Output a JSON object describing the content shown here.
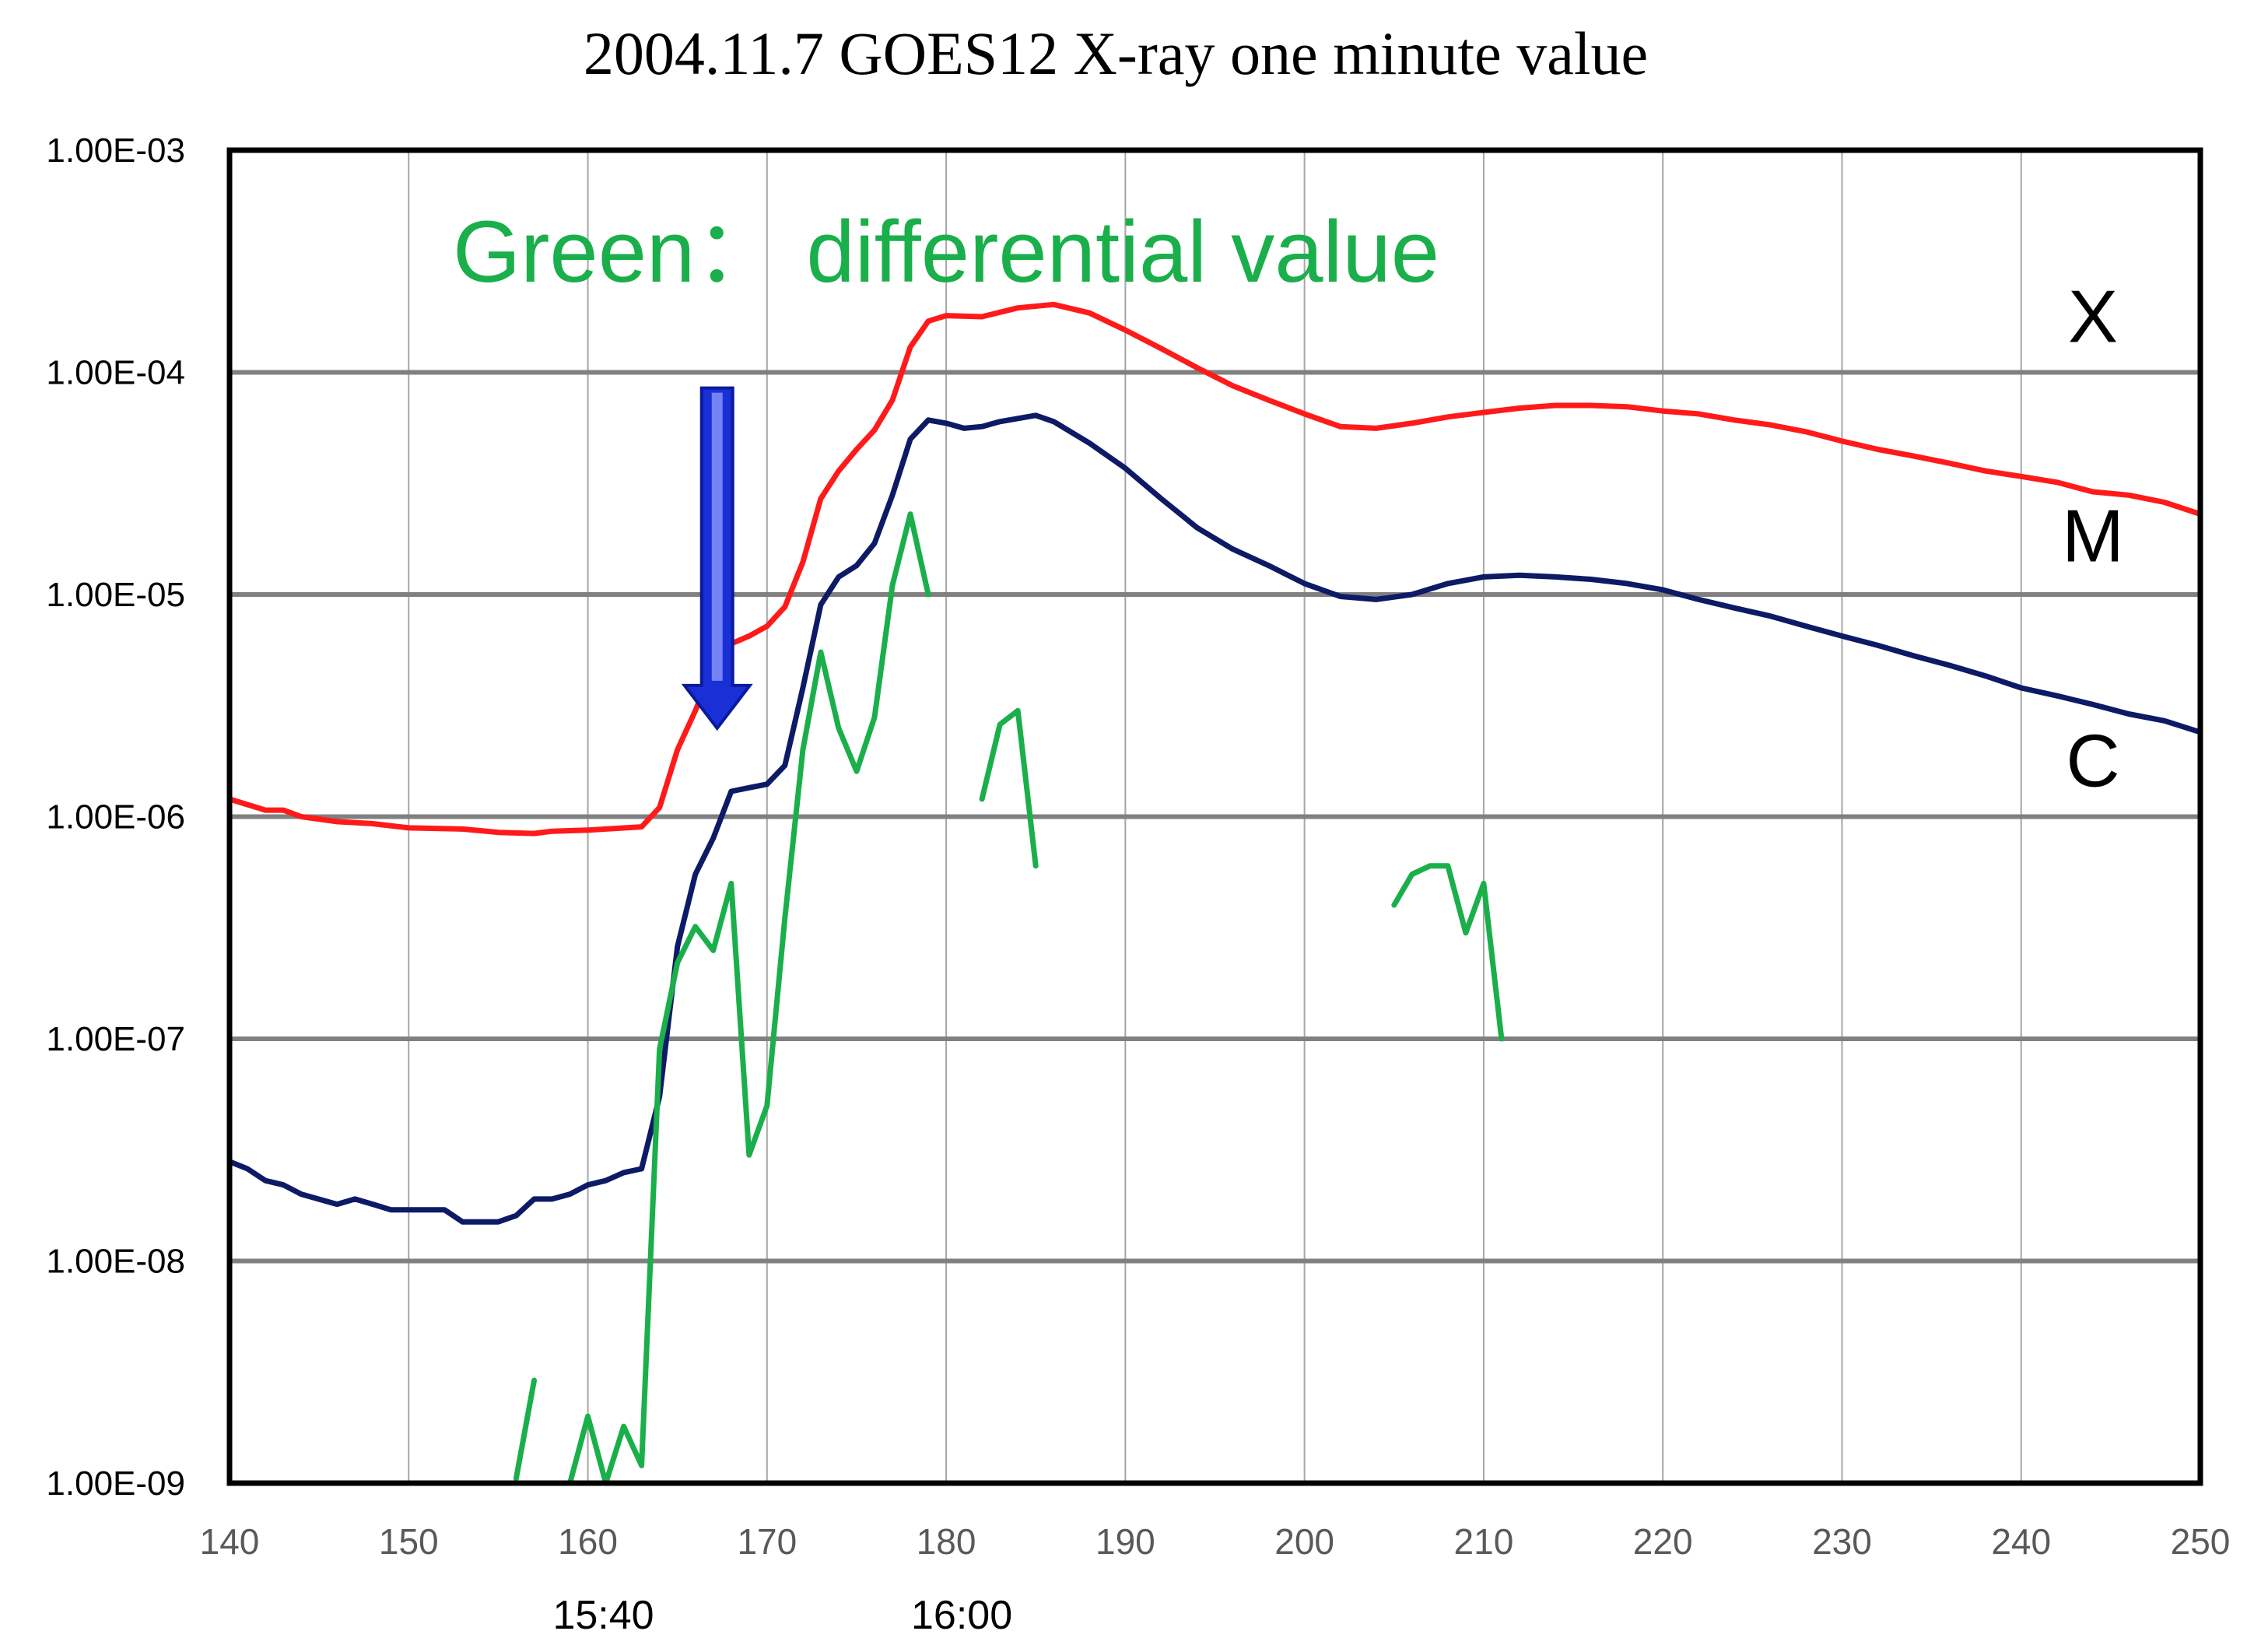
{
  "chart_data": {
    "type": "line",
    "title": "2004.11.7  GOES12 X-ray one minute value",
    "annotation": "Green：  differential value",
    "yscale": "log",
    "ylim": [
      1e-09,
      0.001
    ],
    "xlim": [
      140,
      250
    ],
    "grid": true,
    "y_ticks": [
      "1.00E-09",
      "1.00E-08",
      "1.00E-07",
      "1.00E-06",
      "1.00E-05",
      "1.00E-04",
      "1.00E-03"
    ],
    "x_ticks": [
      "140",
      "150",
      "160",
      "170",
      "180",
      "190",
      "200",
      "210",
      "220",
      "230",
      "240",
      "250"
    ],
    "time_labels": [
      {
        "x": 160,
        "text": "15:40"
      },
      {
        "x": 180,
        "text": "16:00"
      }
    ],
    "class_labels": [
      {
        "text": "X",
        "y": 0.00018
      },
      {
        "text": "M",
        "y": 1.85e-05
      },
      {
        "text": "C",
        "y": 1.8e-06
      }
    ],
    "arrow": {
      "x": 167,
      "y_from": 8.5e-05,
      "y_to": 2.5e-06,
      "color": "#1a2fd6"
    },
    "series": [
      {
        "color": "#ff1a1a",
        "points": [
          [
            140,
            1.2e-06
          ],
          [
            142,
            1.07e-06
          ],
          [
            143,
            1.07e-06
          ],
          [
            144,
            1e-06
          ],
          [
            146,
            9.5e-07
          ],
          [
            148,
            9.3e-07
          ],
          [
            150,
            8.9e-07
          ],
          [
            153,
            8.8e-07
          ],
          [
            155,
            8.5e-07
          ],
          [
            157,
            8.4e-07
          ],
          [
            158,
            8.6e-07
          ],
          [
            160,
            8.7e-07
          ],
          [
            163,
            9e-07
          ],
          [
            164,
            1.1e-06
          ],
          [
            165,
            2e-06
          ],
          [
            166,
            3e-06
          ],
          [
            167,
            4.7e-06
          ],
          [
            168,
            6e-06
          ],
          [
            169,
            6.5e-06
          ],
          [
            170,
            7.2e-06
          ],
          [
            171,
            8.8e-06
          ],
          [
            172,
            1.4e-05
          ],
          [
            173,
            2.7e-05
          ],
          [
            174,
            3.6e-05
          ],
          [
            175,
            4.5e-05
          ],
          [
            176,
            5.5e-05
          ],
          [
            177,
            7.5e-05
          ],
          [
            178,
            0.00013
          ],
          [
            179,
            0.00017
          ],
          [
            180,
            0.00018
          ],
          [
            182,
            0.000178
          ],
          [
            184,
            0.000195
          ],
          [
            186,
            0.000202
          ],
          [
            188,
            0.000185
          ],
          [
            190,
            0.000155
          ],
          [
            192,
            0.000128
          ],
          [
            194,
            0.000105
          ],
          [
            196,
            8.7e-05
          ],
          [
            198,
            7.5e-05
          ],
          [
            200,
            6.5e-05
          ],
          [
            202,
            5.7e-05
          ],
          [
            204,
            5.6e-05
          ],
          [
            206,
            5.9e-05
          ],
          [
            208,
            6.3e-05
          ],
          [
            210,
            6.6e-05
          ],
          [
            212,
            6.9e-05
          ],
          [
            214,
            7.1e-05
          ],
          [
            216,
            7.1e-05
          ],
          [
            218,
            7e-05
          ],
          [
            220,
            6.7e-05
          ],
          [
            222,
            6.5e-05
          ],
          [
            224,
            6.1e-05
          ],
          [
            226,
            5.8e-05
          ],
          [
            228,
            5.4e-05
          ],
          [
            230,
            4.9e-05
          ],
          [
            232,
            4.5e-05
          ],
          [
            234,
            4.2e-05
          ],
          [
            236,
            3.9e-05
          ],
          [
            238,
            3.6e-05
          ],
          [
            240,
            3.4e-05
          ],
          [
            242,
            3.2e-05
          ],
          [
            244,
            2.9e-05
          ],
          [
            246,
            2.8e-05
          ],
          [
            248,
            2.6e-05
          ],
          [
            250,
            2.3e-05
          ]
        ]
      },
      {
        "color": "#0d1a66",
        "points": [
          [
            140,
            2.8e-08
          ],
          [
            141,
            2.6e-08
          ],
          [
            142,
            2.3e-08
          ],
          [
            143,
            2.2e-08
          ],
          [
            144,
            2e-08
          ],
          [
            146,
            1.8e-08
          ],
          [
            147,
            1.9e-08
          ],
          [
            148,
            1.8e-08
          ],
          [
            149,
            1.7e-08
          ],
          [
            152,
            1.7e-08
          ],
          [
            153,
            1.5e-08
          ],
          [
            155,
            1.5e-08
          ],
          [
            156,
            1.6e-08
          ],
          [
            157,
            1.9e-08
          ],
          [
            158,
            1.9e-08
          ],
          [
            159,
            2e-08
          ],
          [
            160,
            2.2e-08
          ],
          [
            161,
            2.3e-08
          ],
          [
            162,
            2.5e-08
          ],
          [
            163,
            2.6e-08
          ],
          [
            164,
            5.5e-08
          ],
          [
            165,
            2.6e-07
          ],
          [
            166,
            5.5e-07
          ],
          [
            167,
            8e-07
          ],
          [
            168,
            1.3e-06
          ],
          [
            169,
            1.35e-06
          ],
          [
            170,
            1.4e-06
          ],
          [
            171,
            1.7e-06
          ],
          [
            172,
            3.8e-06
          ],
          [
            173,
            9e-06
          ],
          [
            174,
            1.2e-05
          ],
          [
            175,
            1.35e-05
          ],
          [
            176,
            1.7e-05
          ],
          [
            177,
            2.8e-05
          ],
          [
            178,
            5e-05
          ],
          [
            179,
            6.1e-05
          ],
          [
            180,
            5.9e-05
          ],
          [
            181,
            5.6e-05
          ],
          [
            182,
            5.7e-05
          ],
          [
            183,
            6e-05
          ],
          [
            185,
            6.4e-05
          ],
          [
            186,
            6e-05
          ],
          [
            188,
            4.8e-05
          ],
          [
            190,
            3.7e-05
          ],
          [
            192,
            2.7e-05
          ],
          [
            194,
            2e-05
          ],
          [
            196,
            1.6e-05
          ],
          [
            198,
            1.35e-05
          ],
          [
            200,
            1.12e-05
          ],
          [
            202,
            9.8e-06
          ],
          [
            204,
            9.5e-06
          ],
          [
            206,
            1e-05
          ],
          [
            208,
            1.12e-05
          ],
          [
            210,
            1.2e-05
          ],
          [
            212,
            1.22e-05
          ],
          [
            214,
            1.2e-05
          ],
          [
            216,
            1.17e-05
          ],
          [
            218,
            1.12e-05
          ],
          [
            220,
            1.05e-05
          ],
          [
            222,
            9.5e-06
          ],
          [
            224,
            8.7e-06
          ],
          [
            226,
            8e-06
          ],
          [
            228,
            7.2e-06
          ],
          [
            230,
            6.5e-06
          ],
          [
            232,
            5.9e-06
          ],
          [
            234,
            5.3e-06
          ],
          [
            236,
            4.8e-06
          ],
          [
            238,
            4.3e-06
          ],
          [
            240,
            3.8e-06
          ],
          [
            242,
            3.5e-06
          ],
          [
            244,
            3.2e-06
          ],
          [
            246,
            2.9e-06
          ],
          [
            248,
            2.7e-06
          ],
          [
            250,
            2.4e-06
          ]
        ]
      },
      {
        "color": "#1aaf4b",
        "segments": [
          [
            [
              156,
              1.05e-09
            ],
            [
              157,
              2.9e-09
            ]
          ],
          [
            [
              159,
              1e-09
            ],
            [
              160,
              2e-09
            ],
            [
              161,
              1e-09
            ],
            [
              162,
              1.8e-09
            ],
            [
              163,
              1.2e-09
            ],
            [
              164,
              9e-08
            ],
            [
              165,
              2.2e-07
            ],
            [
              166,
              3.2e-07
            ],
            [
              167,
              2.5e-07
            ],
            [
              168,
              5e-07
            ],
            [
              169,
              3e-08
            ],
            [
              170,
              5e-08
            ],
            [
              171,
              3.5e-07
            ],
            [
              172,
              2e-06
            ],
            [
              173,
              5.5e-06
            ],
            [
              174,
              2.5e-06
            ],
            [
              175,
              1.6e-06
            ],
            [
              176,
              2.8e-06
            ],
            [
              177,
              1.1e-05
            ],
            [
              178,
              2.3e-05
            ],
            [
              179,
              1e-05
            ]
          ],
          [
            [
              182,
              1.2e-06
            ],
            [
              183,
              2.6e-06
            ],
            [
              184,
              3e-06
            ],
            [
              185,
              6e-07
            ]
          ],
          [
            [
              205,
              4e-07
            ],
            [
              206,
              5.5e-07
            ],
            [
              207,
              6e-07
            ],
            [
              208,
              6e-07
            ],
            [
              209,
              3e-07
            ],
            [
              210,
              5e-07
            ],
            [
              211,
              1e-07
            ]
          ]
        ]
      }
    ]
  }
}
